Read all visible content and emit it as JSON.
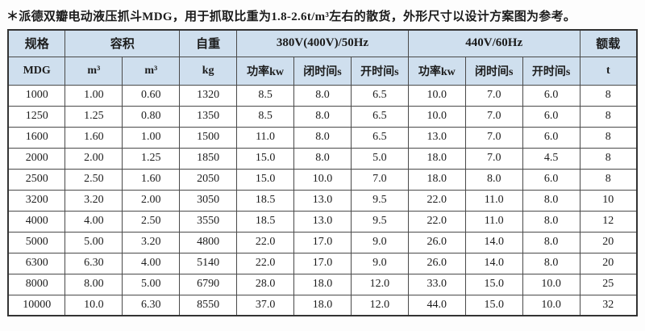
{
  "title": "＊派德双瓣电动液压抓斗MDG，用于抓取比重为1.8-2.6t/m³左右的散货，外形尺寸以设计方案图为参考。",
  "colors": {
    "header_bg": "#cfdfee",
    "border": "#4a4a4a",
    "text": "#1c1c1c"
  },
  "table": {
    "header_groups": [
      {
        "label": "规格",
        "span": 1
      },
      {
        "label": "容积",
        "span": 2
      },
      {
        "label": "自重",
        "span": 1
      },
      {
        "label": "380V(400V)/50Hz",
        "span": 3
      },
      {
        "label": "440V/60Hz",
        "span": 3
      },
      {
        "label": "额载",
        "span": 1
      }
    ],
    "subheaders": [
      "MDG",
      "m³",
      "m³",
      "kg",
      "功率kw",
      "闭时间s",
      "开时间s",
      "功率kw",
      "闭时间s",
      "开时间s",
      "t"
    ],
    "rows": [
      [
        "1000",
        "1.00",
        "0.60",
        "1320",
        "8.5",
        "8.0",
        "6.5",
        "10.0",
        "7.0",
        "6.0",
        "8"
      ],
      [
        "1250",
        "1.25",
        "0.80",
        "1350",
        "8.5",
        "8.0",
        "6.5",
        "10.0",
        "7.0",
        "6.0",
        "8"
      ],
      [
        "1600",
        "1.60",
        "1.00",
        "1500",
        "11.0",
        "8.0",
        "6.5",
        "13.0",
        "7.0",
        "6.0",
        "8"
      ],
      [
        "2000",
        "2.00",
        "1.25",
        "1850",
        "15.0",
        "8.0",
        "5.0",
        "18.0",
        "7.0",
        "4.5",
        "8"
      ],
      [
        "2500",
        "2.50",
        "1.60",
        "2050",
        "15.0",
        "10.0",
        "7.0",
        "18.0",
        "8.0",
        "6.0",
        "8"
      ],
      [
        "3200",
        "3.20",
        "2.00",
        "3050",
        "18.5",
        "13.0",
        "9.5",
        "22.0",
        "11.0",
        "8.0",
        "10"
      ],
      [
        "4000",
        "4.00",
        "2.50",
        "3550",
        "18.5",
        "13.0",
        "9.5",
        "22.0",
        "11.0",
        "8.0",
        "12"
      ],
      [
        "5000",
        "5.00",
        "3.20",
        "4800",
        "22.0",
        "17.0",
        "9.0",
        "26.0",
        "14.0",
        "8.0",
        "20"
      ],
      [
        "6300",
        "6.30",
        "4.00",
        "5140",
        "22.0",
        "17.0",
        "9.0",
        "26.0",
        "14.0",
        "8.0",
        "20"
      ],
      [
        "8000",
        "8.00",
        "5.00",
        "6790",
        "28.0",
        "18.0",
        "12.0",
        "33.0",
        "15.0",
        "10.0",
        "25"
      ],
      [
        "10000",
        "10.0",
        "6.30",
        "8550",
        "37.0",
        "18.0",
        "12.0",
        "44.0",
        "15.0",
        "10.0",
        "32"
      ]
    ]
  }
}
